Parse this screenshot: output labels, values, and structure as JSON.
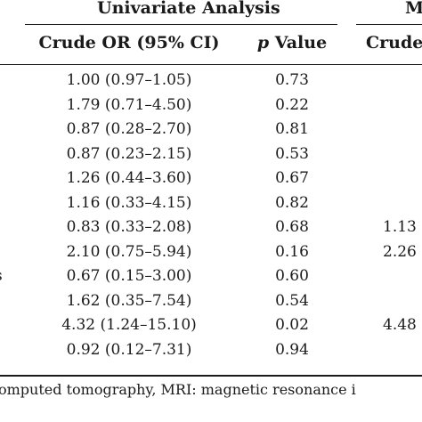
{
  "header": {
    "group_univariate": "Univariate Analysis",
    "group_multivariate_partial": "M",
    "col_crude_or": "Crude OR (95% CI)",
    "col_p_prefix": "p",
    "col_p_suffix": " Value",
    "col_crude_partial": "Crude"
  },
  "rows": [
    {
      "label": "",
      "or": "1.00 (0.97–1.05)",
      "p": "0.73",
      "right": ""
    },
    {
      "label": "",
      "or": "1.79 (0.71–4.50)",
      "p": "0.22",
      "right": ""
    },
    {
      "label": "",
      "or": "0.87 (0.28–2.70)",
      "p": "0.81",
      "right": ""
    },
    {
      "label": "",
      "or": "0.87 (0.23–2.15)",
      "p": "0.53",
      "right": ""
    },
    {
      "label": "",
      "or": "1.26 (0.44–3.60)",
      "p": "0.67",
      "right": ""
    },
    {
      "label": "",
      "or": "1.16 (0.33–4.15)",
      "p": "0.82",
      "right": ""
    },
    {
      "label": "",
      "or": "0.83 (0.33–2.08)",
      "p": "0.68",
      "right": "1.13"
    },
    {
      "label": "",
      "or": "2.10 (0.75–5.94)",
      "p": "0.16",
      "right": "2.26"
    },
    {
      "label": "s",
      "or": "0.67 (0.15–3.00)",
      "p": "0.60",
      "right": ""
    },
    {
      "label": "",
      "or": "1.62 (0.35–7.54)",
      "p": "0.54",
      "right": ""
    },
    {
      "label": "",
      "or": "4.32 (1.24–15.10)",
      "p": "0.02",
      "right": "4.48"
    },
    {
      "label": "",
      "or": "0.92 (0.12–7.31)",
      "p": "0.94",
      "right": ""
    }
  ],
  "footnote": "omputed tomography, MRI: magnetic resonance i"
}
